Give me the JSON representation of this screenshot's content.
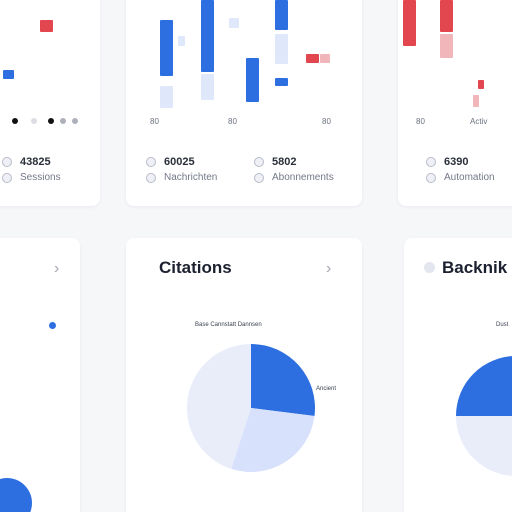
{
  "colors": {
    "accent": "#2d6fe0",
    "accent_light": "#dfe8fb",
    "danger": "#e2464f",
    "background": "#f6f7f9"
  },
  "top_left": {
    "axis_label": "",
    "stat_value": "43825",
    "stat_label": "Sessions"
  },
  "top_mid": {
    "axis_labels": [
      "80",
      "80",
      "80"
    ],
    "stats": [
      {
        "value": "60025",
        "label": "Nachrichten"
      },
      {
        "value": "5802",
        "label": "Abonnements"
      }
    ]
  },
  "top_right": {
    "axis_labels": [
      "80",
      "Activ"
    ],
    "stat_value": "6390",
    "stat_label": "Automation"
  },
  "bottom_mid": {
    "title": "Citations",
    "chart_title": "Base Cannstatt Dannsen",
    "legend_label": "Ancient"
  },
  "bottom_right": {
    "title": "Backnik",
    "chart_label": "Dust"
  },
  "chart_data": {
    "type": "pie",
    "slices": [
      {
        "value": 27,
        "color": "#2d6fe0"
      },
      {
        "value": 28,
        "color": "#d7e1fb"
      },
      {
        "value": 45,
        "color": "#e9edfa"
      }
    ]
  }
}
